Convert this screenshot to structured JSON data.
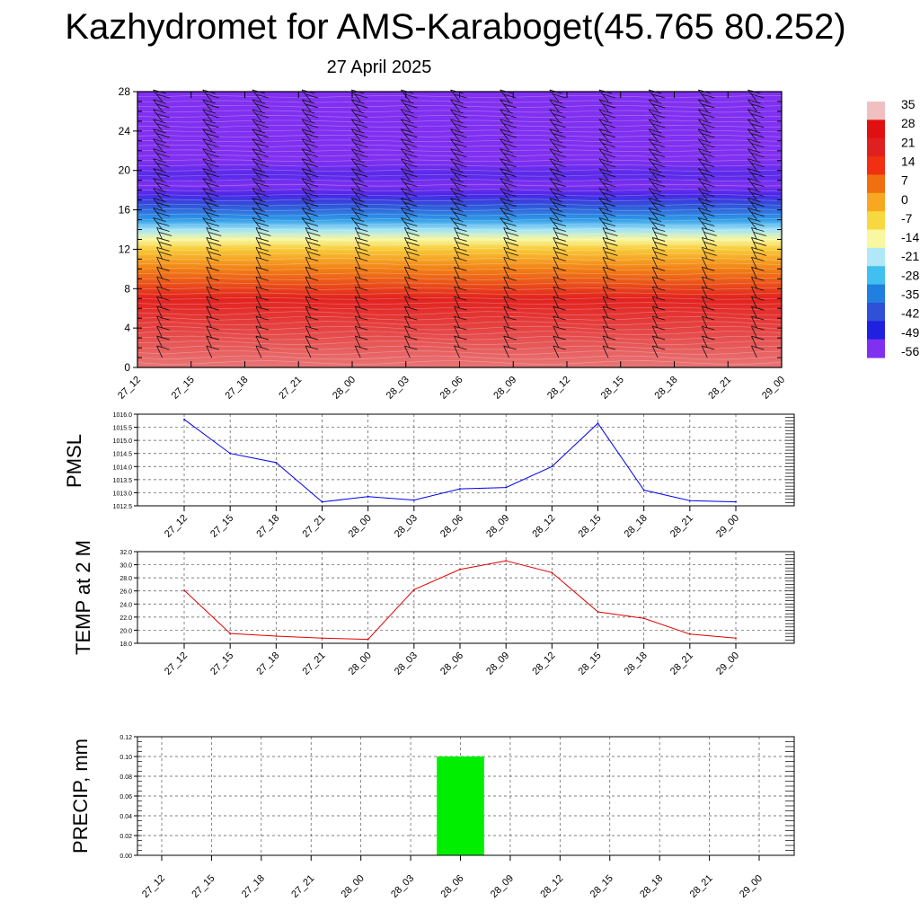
{
  "header": {
    "title": "Kazhydromet for AMS-Karaboget(45.765 80.252)",
    "subtitle": "27 April 2025"
  },
  "chart_data": [
    {
      "type": "heatmap",
      "title": "",
      "xlabel": "",
      "ylabel": "",
      "x": [
        "27_12",
        "27_15",
        "27_18",
        "27_21",
        "28_00",
        "28_03",
        "28_06",
        "28_09",
        "28_12",
        "28_15",
        "28_18",
        "28_21",
        "29_00"
      ],
      "y_ticks": [
        0,
        4,
        8,
        12,
        16,
        20,
        24,
        28
      ],
      "ylim": [
        0,
        28
      ],
      "colorbar": {
        "labels": [
          "35",
          "28",
          "21",
          "14",
          "7",
          "0",
          "-7",
          "-14",
          "-21",
          "-28",
          "-35",
          "-42",
          "-49",
          "-56"
        ],
        "colors": [
          "#f0c0c0",
          "#e01010",
          "#e02020",
          "#f03010",
          "#f07010",
          "#f8a820",
          "#f8d840",
          "#f8f8a0",
          "#b0e8f8",
          "#40c0f0",
          "#2080e0",
          "#3050d8",
          "#2020e0",
          "#8030f0"
        ]
      },
      "profile": [
        {
          "level": 0,
          "value": 32
        },
        {
          "level": 4,
          "value": 30
        },
        {
          "level": 7,
          "value": 20
        },
        {
          "level": 10,
          "value": 5
        },
        {
          "level": 12,
          "value": -5
        },
        {
          "level": 13,
          "value": -14
        },
        {
          "level": 14,
          "value": -22
        },
        {
          "level": 15,
          "value": -32
        },
        {
          "level": 16.5,
          "value": -42
        },
        {
          "level": 17.5,
          "value": -52
        },
        {
          "level": 18.5,
          "value": -58
        },
        {
          "level": 19.5,
          "value": -53
        },
        {
          "level": 21,
          "value": -56
        },
        {
          "level": 28,
          "value": -57
        }
      ]
    },
    {
      "type": "line",
      "ylabel": "PMSL",
      "x": [
        "27_12",
        "27_15",
        "27_18",
        "27_21",
        "28_00",
        "28_03",
        "28_06",
        "28_09",
        "28_12",
        "28_15",
        "28_18",
        "28_21",
        "29_00"
      ],
      "series": [
        {
          "values": [
            1015.8,
            1014.5,
            1014.15,
            1012.65,
            1012.85,
            1012.72,
            1013.15,
            1013.2,
            1014.0,
            1015.65,
            1013.1,
            1012.7,
            1012.65
          ]
        }
      ],
      "ylim": [
        1012.5,
        1016.0
      ],
      "y_ticks": [
        "1012.5",
        "1013.0",
        "1013.5",
        "1014.0",
        "1014.5",
        "1015.0",
        "1015.5",
        "1016.0"
      ],
      "color": "#0000ee"
    },
    {
      "type": "line",
      "ylabel": "TEMP at 2 M",
      "x": [
        "27_12",
        "27_15",
        "27_18",
        "27_21",
        "28_00",
        "28_03",
        "28_06",
        "28_09",
        "28_12",
        "28_15",
        "28_18",
        "28_21",
        "29_00"
      ],
      "series": [
        {
          "values": [
            26.1,
            19.5,
            19.1,
            18.8,
            18.6,
            26.2,
            29.3,
            30.6,
            28.8,
            22.8,
            21.8,
            19.4,
            18.8
          ]
        }
      ],
      "ylim": [
        18.0,
        32.0
      ],
      "y_ticks": [
        "18.0",
        "20.0",
        "22.0",
        "24.0",
        "26.0",
        "28.0",
        "30.0",
        "32.0"
      ],
      "color": "#e00000"
    },
    {
      "type": "bar",
      "ylabel": "PRECIP, mm",
      "x": [
        "27_12",
        "27_15",
        "27_18",
        "27_21",
        "28_00",
        "28_03",
        "28_06",
        "28_09",
        "28_12",
        "28_15",
        "28_18",
        "28_21",
        "29_00"
      ],
      "values": [
        0,
        0,
        0,
        0,
        0,
        0,
        0.1,
        0,
        0,
        0,
        0,
        0,
        0
      ],
      "ylim": [
        0.0,
        0.12
      ],
      "y_ticks": [
        "0.00",
        "0.02",
        "0.04",
        "0.06",
        "0.08",
        "0.10",
        "0.12"
      ],
      "color": "#00ee00"
    }
  ]
}
